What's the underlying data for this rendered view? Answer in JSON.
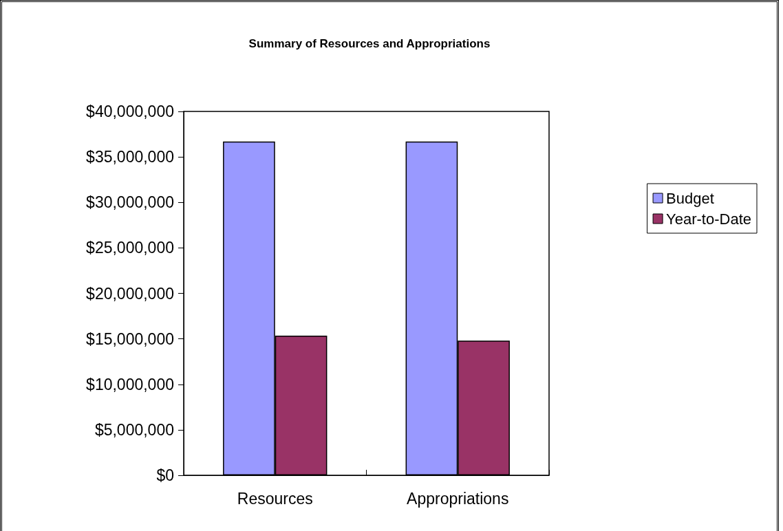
{
  "chart_data": {
    "type": "bar",
    "title": "Summary of Resources and Appropriations",
    "categories": [
      "Resources",
      "Appropriations"
    ],
    "series": [
      {
        "name": "Budget",
        "color": "#9999ff",
        "values": [
          36700000,
          36700000
        ]
      },
      {
        "name": "Year-to-Date",
        "color": "#993366",
        "values": [
          15350000,
          14800000
        ]
      }
    ],
    "ylim": [
      0,
      40000000
    ],
    "yticks": [
      {
        "value": 0,
        "label": "$0"
      },
      {
        "value": 5000000,
        "label": "$5,000,000"
      },
      {
        "value": 10000000,
        "label": "$10,000,000"
      },
      {
        "value": 15000000,
        "label": "$15,000,000"
      },
      {
        "value": 20000000,
        "label": "$20,000,000"
      },
      {
        "value": 25000000,
        "label": "$25,000,000"
      },
      {
        "value": 30000000,
        "label": "$30,000,000"
      },
      {
        "value": 35000000,
        "label": "$35,000,000"
      },
      {
        "value": 40000000,
        "label": "$40,000,000"
      }
    ],
    "grid": false,
    "legend": "right"
  }
}
